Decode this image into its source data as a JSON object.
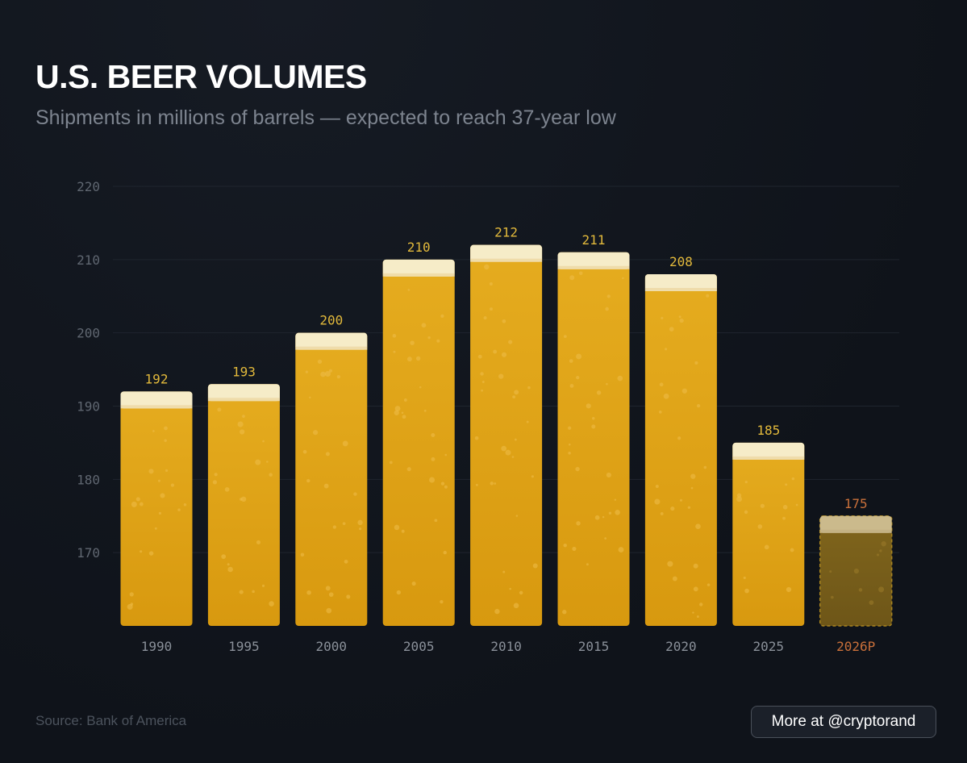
{
  "colors": {
    "background": "#11151d",
    "beer": "#dca21e",
    "beer_dark": "#c98e12",
    "foam": "#f6ecc8",
    "value_label": "#e2b93b",
    "projection_label": "#c9703a",
    "projection_beer": "#8a6a14",
    "gridline": "#1f252e"
  },
  "chart_data": {
    "type": "bar",
    "title": "U.S. BEER VOLUMES",
    "subtitle": "Shipments in millions of barrels — expected to reach 37-year low",
    "xlabel": "",
    "ylabel": "",
    "ylim": [
      160,
      220
    ],
    "yticks": [
      170,
      180,
      190,
      200,
      210,
      220
    ],
    "grid": true,
    "categories": [
      "1990",
      "1995",
      "2000",
      "2005",
      "2010",
      "2015",
      "2020",
      "2025",
      "2026P"
    ],
    "values": [
      192,
      193,
      200,
      210,
      212,
      211,
      208,
      185,
      175
    ],
    "projected": [
      false,
      false,
      false,
      false,
      false,
      false,
      false,
      false,
      true
    ]
  },
  "footer": {
    "source": "Source: Bank of America",
    "more_button": "More at @cryptorand"
  }
}
